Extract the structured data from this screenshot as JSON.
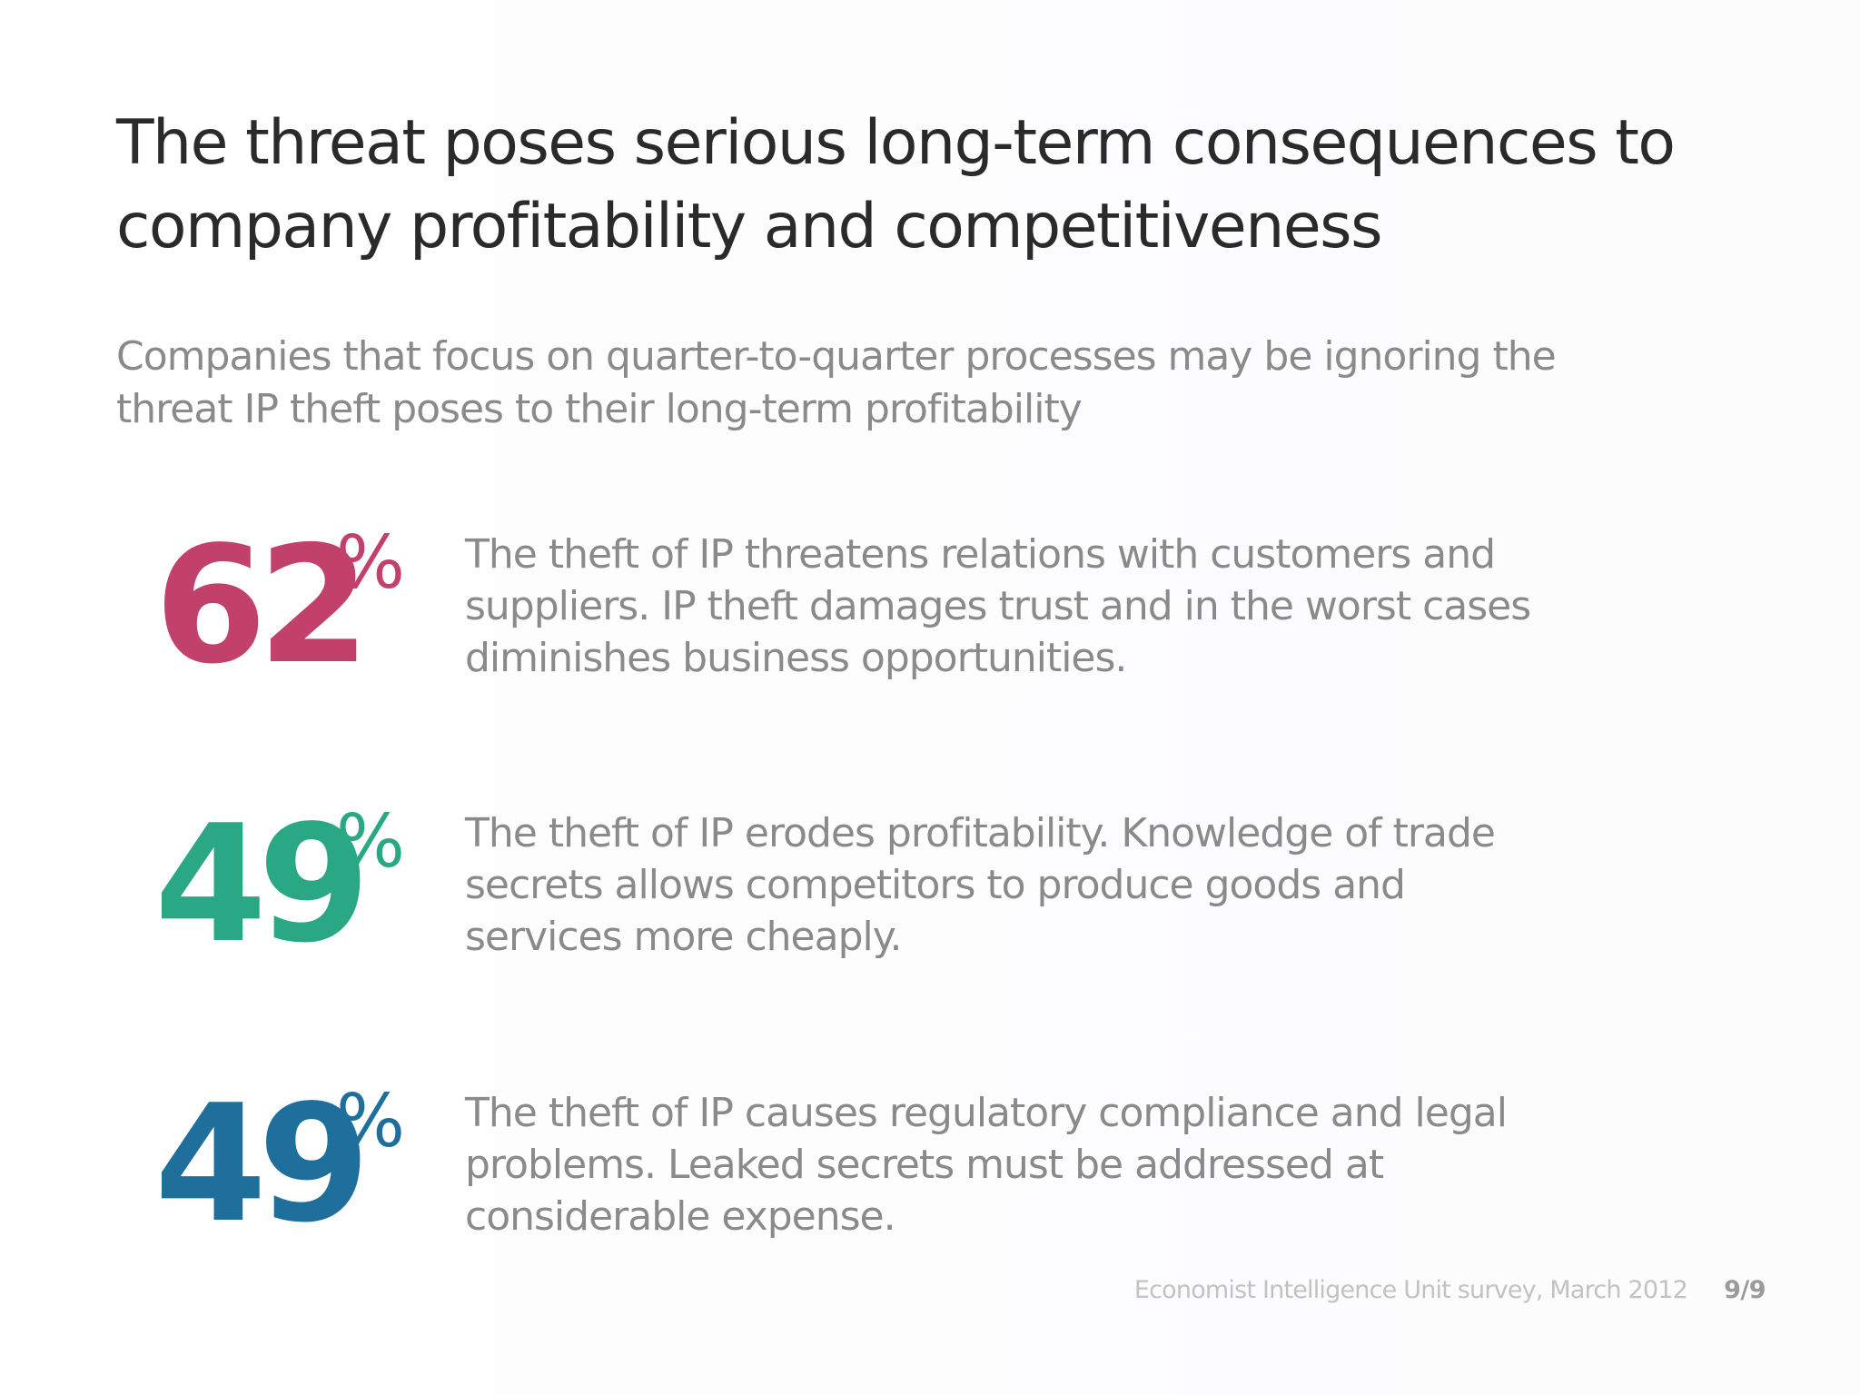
{
  "slide": {
    "title": "The threat poses serious long-term consequences to company profitability and competitiveness",
    "subtitle": "Companies that focus on quarter-to-quarter processes may be ignoring the threat IP theft poses to their long-term profitability",
    "stats": [
      {
        "value": "62",
        "unit": "%",
        "color": "#c2416a",
        "description": "The theft of IP threatens relations with customers and suppliers.  IP theft damages trust and in the worst cases diminishes business opportunities."
      },
      {
        "value": "49",
        "unit": "%",
        "color": "#2aa886",
        "description": "The theft of IP erodes profitability.  Knowledge of trade secrets allows competitors to produce goods and services more cheaply."
      },
      {
        "value": "49",
        "unit": "%",
        "color": "#1f6f9d",
        "description": "The theft of IP causes regulatory compliance and legal problems.  Leaked secrets must be addressed at considerable expense."
      }
    ],
    "source": "Economist Intelligence Unit survey, March 2012",
    "page": "9/9"
  }
}
